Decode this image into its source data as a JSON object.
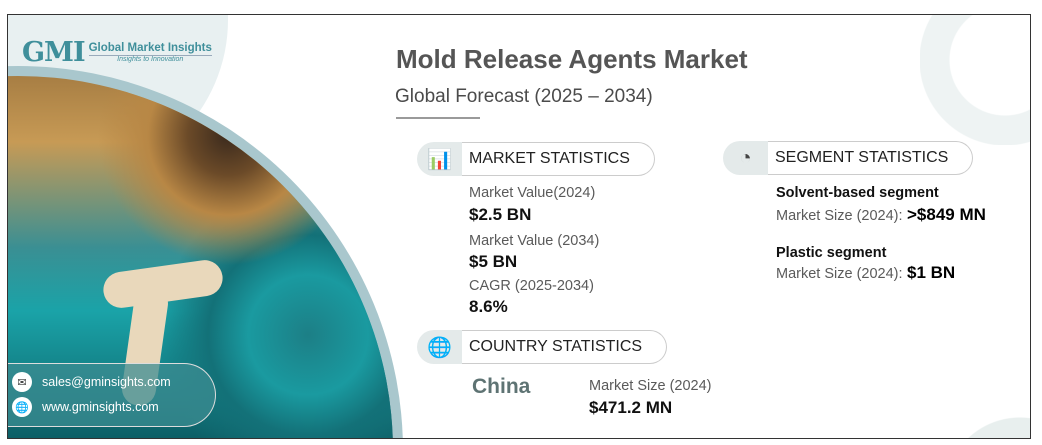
{
  "logo": {
    "mark": "GMI",
    "name": "Global Market Insights",
    "tagline": "Insights to Innovation"
  },
  "title": "Mold Release Agents Market",
  "subtitle": "Global Forecast (2025 – 2034)",
  "market_statistics": {
    "heading": "MARKET STATISTICS",
    "icon": "chart-globe-icon",
    "items": [
      {
        "label": "Market Value(2024)",
        "value": "$2.5 BN"
      },
      {
        "label": "Market Value (2034)",
        "value": "$5 BN"
      },
      {
        "label": "CAGR (2025-2034)",
        "value": "8.6%"
      }
    ]
  },
  "segment_statistics": {
    "heading": "SEGMENT STATISTICS",
    "icon": "segment-chart-icon",
    "items": [
      {
        "name": "Solvent-based segment",
        "label": "Market Size (2024):",
        "value": ">$849 MN"
      },
      {
        "name": "Plastic segment",
        "label": "Market Size (2024):",
        "value": "$1 BN"
      }
    ]
  },
  "country_statistics": {
    "heading": "COUNTRY STATISTICS",
    "icon": "globe-icon",
    "country": "China",
    "label": "Market Size (2024)",
    "value": "$471.2 MN"
  },
  "contact": {
    "email": "sales@gminsights.com",
    "website": "www.gminsights.com"
  },
  "colors": {
    "accent": "#3f8f9b",
    "text": "#111111"
  }
}
